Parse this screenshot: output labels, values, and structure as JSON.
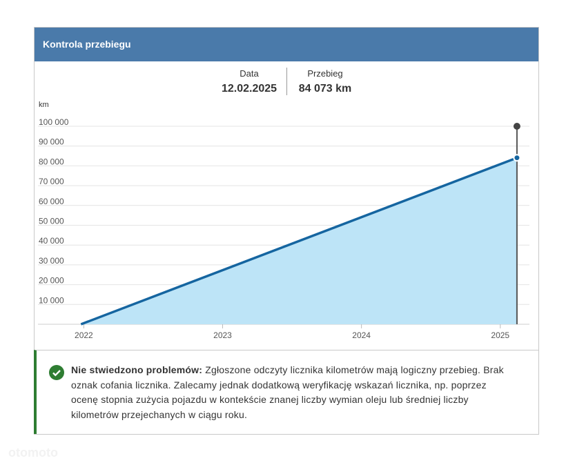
{
  "header": {
    "title": "Kontrola przebiegu"
  },
  "summary": {
    "date_label": "Data",
    "date_value": "12.02.2025",
    "mileage_label": "Przebieg",
    "mileage_value": "84 073 km"
  },
  "chart_data": {
    "type": "area",
    "y_label": "km",
    "x": [
      2021.98,
      2025.12
    ],
    "values": [
      0,
      84073
    ],
    "color": "#1565a0",
    "fill": "#bde4f7",
    "xlim": [
      2021.67,
      2025.21
    ],
    "xticks": [
      2022,
      2023,
      2024,
      2025
    ],
    "ylim": [
      0,
      100000
    ],
    "yticks": [
      {
        "value": 10000,
        "label": "10 000"
      },
      {
        "value": 20000,
        "label": "20 000"
      },
      {
        "value": 30000,
        "label": "30 000"
      },
      {
        "value": 40000,
        "label": "40 000"
      },
      {
        "value": 50000,
        "label": "50 000"
      },
      {
        "value": 60000,
        "label": "60 000"
      },
      {
        "value": 70000,
        "label": "70 000"
      },
      {
        "value": 80000,
        "label": "80 000"
      },
      {
        "value": 90000,
        "label": "90 000"
      },
      {
        "value": 100000,
        "label": "100 000"
      }
    ],
    "grid": true
  },
  "message": {
    "title": "Nie stwiedzono problemów:",
    "text": "Zgłoszone odczyty licznika kilometrów mają logiczny przebieg. Brak oznak cofania licznika. Zalecamy jednak dodatkową weryfikację wskazań licznika, np. poprzez ocenę stopnia zużycia pojazdu w kontekście znanej liczby wymian oleju lub średniej liczby kilometrów przejechanych w ciągu roku."
  },
  "watermark": "otomoto"
}
